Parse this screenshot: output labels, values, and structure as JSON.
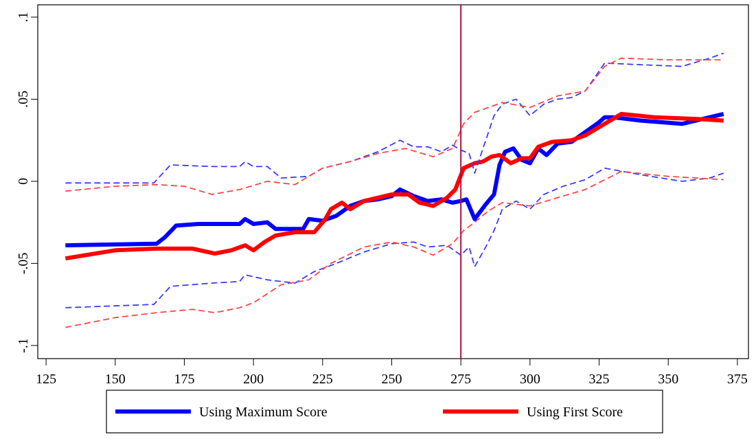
{
  "chart_data": {
    "type": "line",
    "xlim": [
      122,
      379
    ],
    "ylim": [
      -0.108,
      0.1075
    ],
    "xticks": [
      125,
      150,
      175,
      200,
      225,
      250,
      275,
      300,
      325,
      350,
      375
    ],
    "yticks": [
      {
        "value": -0.1,
        "label": "-.1"
      },
      {
        "value": -0.05,
        "label": "-.05"
      },
      0,
      {
        "value": 0.05,
        "label": ".05"
      },
      {
        "value": 0.1,
        "label": ".1"
      }
    ],
    "vline": 275,
    "vline_color": "#b0103a",
    "series": [
      {
        "name": "Using Maximum Score",
        "color": "#0000ff",
        "style": "solid",
        "x": [
          132,
          165,
          168,
          172,
          180,
          195,
          197,
          200,
          205,
          208,
          212,
          218,
          220,
          225,
          230,
          235,
          240,
          245,
          250,
          253,
          258,
          263,
          268,
          272,
          275,
          277,
          280,
          284,
          287,
          289,
          291,
          294,
          297,
          300,
          303,
          306,
          310,
          315,
          320,
          325,
          327,
          330,
          340,
          355,
          365,
          370
        ],
        "values": [
          -0.039,
          -0.038,
          -0.034,
          -0.027,
          -0.026,
          -0.026,
          -0.023,
          -0.026,
          -0.025,
          -0.029,
          -0.029,
          -0.029,
          -0.023,
          -0.024,
          -0.021,
          -0.015,
          -0.012,
          -0.011,
          -0.009,
          -0.005,
          -0.009,
          -0.012,
          -0.011,
          -0.013,
          -0.012,
          -0.011,
          -0.023,
          -0.014,
          -0.008,
          0.01,
          0.018,
          0.02,
          0.013,
          0.011,
          0.02,
          0.016,
          0.023,
          0.024,
          0.03,
          0.036,
          0.039,
          0.039,
          0.037,
          0.035,
          0.039,
          0.041
        ]
      },
      {
        "name": "Using First Score",
        "color": "#ff0000",
        "style": "solid",
        "x": [
          132,
          150,
          165,
          178,
          186,
          192,
          197,
          200,
          204,
          208,
          215,
          222,
          226,
          228,
          232,
          235,
          240,
          245,
          250,
          256,
          260,
          265,
          270,
          273,
          276,
          280,
          283,
          286,
          289,
          293,
          297,
          300,
          303,
          308,
          315,
          320,
          325,
          329,
          333,
          345,
          360,
          370
        ],
        "values": [
          -0.047,
          -0.042,
          -0.041,
          -0.041,
          -0.044,
          -0.042,
          -0.039,
          -0.042,
          -0.037,
          -0.033,
          -0.031,
          -0.031,
          -0.023,
          -0.017,
          -0.013,
          -0.017,
          -0.012,
          -0.01,
          -0.008,
          -0.008,
          -0.013,
          -0.015,
          -0.01,
          -0.005,
          0.008,
          0.011,
          0.012,
          0.015,
          0.016,
          0.011,
          0.014,
          0.014,
          0.021,
          0.024,
          0.025,
          0.028,
          0.033,
          0.037,
          0.041,
          0.039,
          0.038,
          0.037
        ]
      },
      {
        "color": "#3a3aff",
        "style": "dashed",
        "x": [
          132,
          164,
          170,
          185,
          195,
          197,
          200,
          205,
          210,
          220,
          225,
          235,
          245,
          253,
          258,
          263,
          268,
          272,
          275,
          278,
          280,
          283,
          287,
          290,
          295,
          300,
          305,
          310,
          315,
          320,
          327,
          340,
          355,
          365,
          370
        ],
        "values": [
          -0.001,
          -0.001,
          0.01,
          0.009,
          0.009,
          0.012,
          0.009,
          0.009,
          0.002,
          0.003,
          0.008,
          0.012,
          0.018,
          0.025,
          0.021,
          0.021,
          0.018,
          0.022,
          0.019,
          0.017,
          0.005,
          0.02,
          0.04,
          0.047,
          0.05,
          0.04,
          0.047,
          0.05,
          0.051,
          0.055,
          0.072,
          0.071,
          0.07,
          0.075,
          0.078
        ]
      },
      {
        "color": "#3a3aff",
        "style": "dashed",
        "x": [
          132,
          164,
          170,
          185,
          195,
          197,
          205,
          215,
          222,
          230,
          240,
          250,
          258,
          263,
          270,
          275,
          278,
          280,
          284,
          287,
          290,
          295,
          300,
          305,
          312,
          320,
          327,
          340,
          355,
          365,
          370
        ],
        "values": [
          -0.077,
          -0.075,
          -0.064,
          -0.062,
          -0.061,
          -0.057,
          -0.06,
          -0.062,
          -0.055,
          -0.05,
          -0.043,
          -0.038,
          -0.037,
          -0.04,
          -0.039,
          -0.045,
          -0.04,
          -0.052,
          -0.04,
          -0.03,
          -0.017,
          -0.012,
          -0.017,
          -0.008,
          -0.003,
          0.001,
          0.008,
          0.004,
          0.0,
          0.002,
          0.005
        ]
      },
      {
        "color": "#ff4444",
        "style": "dashed",
        "x": [
          132,
          150,
          165,
          175,
          185,
          195,
          205,
          215,
          225,
          235,
          245,
          255,
          265,
          272,
          276,
          280,
          285,
          290,
          300,
          310,
          320,
          327,
          333,
          350,
          370
        ],
        "values": [
          -0.006,
          -0.003,
          -0.002,
          -0.003,
          -0.008,
          -0.005,
          0.0,
          -0.002,
          0.008,
          0.012,
          0.017,
          0.02,
          0.015,
          0.02,
          0.035,
          0.042,
          0.045,
          0.048,
          0.045,
          0.052,
          0.055,
          0.07,
          0.075,
          0.074,
          0.074
        ]
      },
      {
        "color": "#ff4444",
        "style": "dashed",
        "x": [
          132,
          150,
          165,
          178,
          186,
          195,
          200,
          210,
          220,
          228,
          240,
          250,
          258,
          265,
          272,
          276,
          280,
          285,
          290,
          300,
          310,
          320,
          333,
          350,
          370
        ],
        "values": [
          -0.089,
          -0.083,
          -0.08,
          -0.078,
          -0.08,
          -0.077,
          -0.074,
          -0.063,
          -0.06,
          -0.05,
          -0.04,
          -0.037,
          -0.04,
          -0.045,
          -0.038,
          -0.03,
          -0.025,
          -0.018,
          -0.013,
          -0.015,
          -0.01,
          -0.005,
          0.006,
          0.003,
          0.001
        ]
      }
    ]
  }
}
